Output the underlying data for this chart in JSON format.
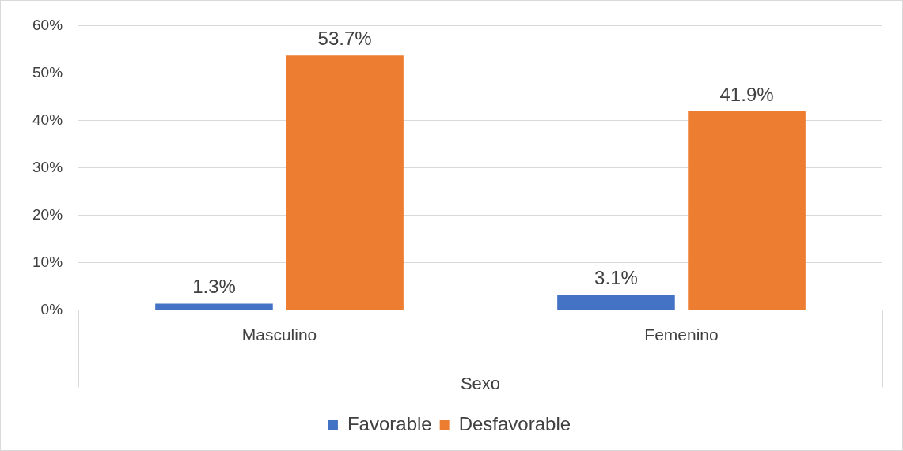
{
  "chart_data": {
    "type": "bar",
    "xlabel": "Sexo",
    "categories": [
      "Masculino",
      "Femenino"
    ],
    "series": [
      {
        "name": "Favorable",
        "color": "#4472c4",
        "values": [
          1.3,
          3.1
        ],
        "value_labels": [
          "1.3%",
          "3.1%"
        ]
      },
      {
        "name": "Desfavorable",
        "color": "#ed7d31",
        "values": [
          53.7,
          41.9
        ],
        "value_labels": [
          "53.7%",
          "41.9%"
        ]
      }
    ],
    "ylim": [
      0,
      60
    ],
    "yticks": [
      {
        "value": 0,
        "label": "0%"
      },
      {
        "value": 10,
        "label": "10%"
      },
      {
        "value": 20,
        "label": "20%"
      },
      {
        "value": 30,
        "label": "30%"
      },
      {
        "value": 40,
        "label": "40%"
      },
      {
        "value": 50,
        "label": "50%"
      },
      {
        "value": 60,
        "label": "60%"
      }
    ],
    "grid": "y",
    "legend": "bottom"
  }
}
